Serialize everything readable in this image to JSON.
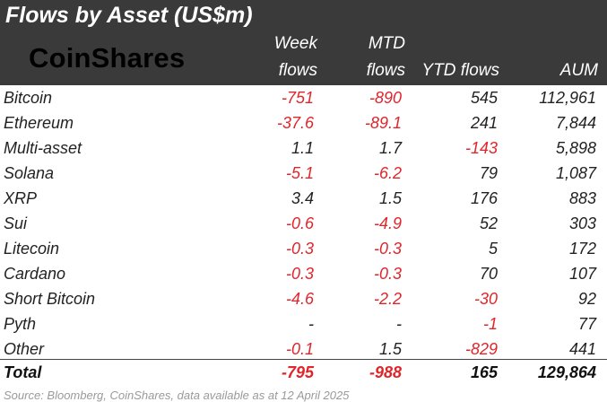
{
  "title": "Flows by Asset (US$m)",
  "logo_text": "CoinShares",
  "headers": {
    "week": "Week",
    "week2": "flows",
    "mtd": "MTD",
    "mtd2": "flows",
    "ytd": "YTD flows",
    "aum": "AUM"
  },
  "rows": [
    {
      "name": "Bitcoin",
      "week": "-751",
      "mtd": "-890",
      "ytd": "545",
      "aum": "112,961"
    },
    {
      "name": "Ethereum",
      "week": "-37.6",
      "mtd": "-89.1",
      "ytd": "241",
      "aum": "7,844"
    },
    {
      "name": "Multi-asset",
      "week": "1.1",
      "mtd": "1.7",
      "ytd": "-143",
      "aum": "5,898"
    },
    {
      "name": "Solana",
      "week": "-5.1",
      "mtd": "-6.2",
      "ytd": "79",
      "aum": "1,087"
    },
    {
      "name": "XRP",
      "week": "3.4",
      "mtd": "1.5",
      "ytd": "176",
      "aum": "883"
    },
    {
      "name": "Sui",
      "week": "-0.6",
      "mtd": "-4.9",
      "ytd": "52",
      "aum": "303"
    },
    {
      "name": "Litecoin",
      "week": "-0.3",
      "mtd": "-0.3",
      "ytd": "5",
      "aum": "172"
    },
    {
      "name": "Cardano",
      "week": "-0.3",
      "mtd": "-0.3",
      "ytd": "70",
      "aum": "107"
    },
    {
      "name": "Short Bitcoin",
      "week": "-4.6",
      "mtd": "-2.2",
      "ytd": "-30",
      "aum": "92"
    },
    {
      "name": "Pyth",
      "week": "-",
      "mtd": "-",
      "ytd": "-1",
      "aum": "77"
    },
    {
      "name": "Other",
      "week": "-0.1",
      "mtd": "1.5",
      "ytd": "-829",
      "aum": "441"
    }
  ],
  "total": {
    "name": "Total",
    "week": "-795",
    "mtd": "-988",
    "ytd": "165",
    "aum": "129,864"
  },
  "source": "Source: Bloomberg, CoinShares, data available as at 12 April 2025",
  "colors": {
    "header_bg": "#3a3a3a",
    "negative": "#e0252b"
  }
}
